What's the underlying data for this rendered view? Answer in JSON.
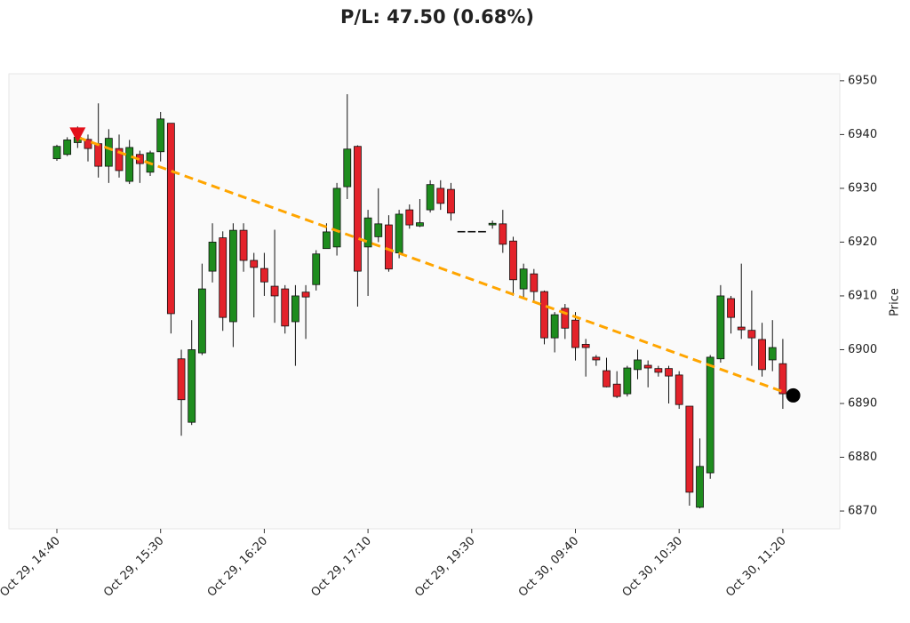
{
  "chart_data": {
    "type": "candlestick",
    "title": "P/L: 47.50 (0.68%)",
    "y_label": "Price",
    "categories": [
      "Oct 29, 14:40",
      null,
      null,
      null,
      null,
      null,
      null,
      null,
      null,
      null,
      "Oct 29, 15:30",
      null,
      null,
      null,
      null,
      null,
      null,
      null,
      null,
      null,
      "Oct 29, 16:20",
      null,
      null,
      null,
      null,
      null,
      null,
      null,
      null,
      null,
      "Oct 29, 17:10",
      null,
      null,
      null,
      null,
      null,
      null,
      null,
      null,
      null,
      "Oct 29, 19:30",
      null,
      null,
      null,
      null,
      null,
      null,
      null,
      null,
      null,
      "Oct 30, 09:40",
      null,
      null,
      null,
      null,
      null,
      null,
      null,
      null,
      null,
      "Oct 30, 10:30",
      null,
      null,
      null,
      null,
      null,
      null,
      null,
      null,
      null,
      "Oct 30, 11:20"
    ],
    "open": [
      6935.5,
      6936.3,
      6938.5,
      6939.1,
      6938.3,
      6934.1,
      6937.4,
      6931.3,
      6936.3,
      6933,
      6936.8,
      6942.1,
      6898.3,
      6886.5,
      6899.4,
      6914.6,
      6920.8,
      6905.2,
      6922.2,
      6916.6,
      6915.1,
      6911.8,
      6911.3,
      6905.2,
      6910.7,
      6912.1,
      6918.8,
      6919.1,
      6930.3,
      6937.8,
      6919.1,
      6921,
      6923.2,
      6918,
      6926,
      6923,
      6926,
      6930,
      6929.8,
      6922,
      6922,
      6922,
      6923.2,
      6923.4,
      6920.2,
      6911.3,
      6914.1,
      6910.8,
      6902.2,
      6907.7,
      6905.5,
      6901,
      6898.6,
      6896.1,
      6893.6,
      6891.8,
      6896.3,
      6897.1,
      6896.5,
      6896.5,
      6895.3,
      6889.5,
      6870.7,
      6877.1,
      6898.3,
      6909.5,
      6904.2,
      6903.6,
      6901.9,
      6898.1,
      6897.4
    ],
    "high": [
      6938.1,
      6939.5,
      6941.5,
      6940,
      6945.8,
      6941,
      6940,
      6939,
      6937,
      6937,
      6944.2,
      6942.1,
      6900,
      6905.5,
      6916,
      6923.5,
      6922,
      6923.5,
      6923.5,
      6918,
      6918,
      6922.3,
      6912,
      6912,
      6912,
      6918.5,
      6923.5,
      6931,
      6947.5,
      6938,
      6926,
      6930,
      6925,
      6926,
      6927,
      6928,
      6931.5,
      6931.5,
      6931,
      6922,
      6922,
      6922,
      6924,
      6926,
      6921,
      6916,
      6915,
      6911,
      6907,
      6908.5,
      6907,
      6902,
      6899,
      6898.5,
      6896,
      6897,
      6900,
      6898,
      6897,
      6897,
      6896,
      6889.5,
      6883.5,
      6899,
      6912,
      6910,
      6916,
      6911,
      6905,
      6905.5,
      6902
    ],
    "low": [
      6935.1,
      6936,
      6937.5,
      6935,
      6932,
      6931,
      6932,
      6930.8,
      6931,
      6932.3,
      6935,
      6903,
      6884,
      6886,
      6899,
      6912.5,
      6903.5,
      6900.5,
      6914.5,
      6906,
      6910,
      6905,
      6903,
      6897,
      6902,
      6911,
      6918.8,
      6917.5,
      6928,
      6908,
      6910,
      6920,
      6914.5,
      6917,
      6922.5,
      6922.8,
      6925.5,
      6926,
      6924,
      6922,
      6922,
      6922,
      6922.5,
      6918,
      6910,
      6909.5,
      6909,
      6901,
      6899.5,
      6902,
      6898,
      6895,
      6897,
      6893,
      6891,
      6891.3,
      6894.5,
      6893,
      6895,
      6890,
      6889,
      6871,
      6870.5,
      6876,
      6897.6,
      6903,
      6902,
      6897,
      6895,
      6896,
      6889
    ],
    "close": [
      6937.8,
      6939,
      6939.5,
      6937.4,
      6934.1,
      6939.3,
      6933.3,
      6937.6,
      6934.6,
      6936.6,
      6942.9,
      6906.7,
      6890.7,
      6900,
      6911.3,
      6920,
      6906,
      6922.2,
      6916.6,
      6915.3,
      6912.6,
      6910,
      6904.4,
      6910,
      6909.8,
      6917.8,
      6921.9,
      6930,
      6937.3,
      6914.6,
      6924.5,
      6923.4,
      6915,
      6925.2,
      6923.2,
      6923.6,
      6930.7,
      6927.2,
      6925.4,
      6922,
      6922,
      6922,
      6923.5,
      6919.6,
      6913,
      6915,
      6910.8,
      6902.2,
      6906.5,
      6904,
      6900.4,
      6900.4,
      6898.1,
      6893.1,
      6891.3,
      6896.6,
      6898.1,
      6896.6,
      6895.8,
      6895.1,
      6889.8,
      6873.5,
      6878.3,
      6898.6,
      6910,
      6906,
      6903.7,
      6902.2,
      6896.3,
      6900.4,
      6891.8
    ],
    "up_color": "#1e8c1e",
    "down_color": "#e3222a",
    "ylim": [
      6866.7,
      6951.3
    ],
    "yticks": [
      6870,
      6880,
      6890,
      6900,
      6910,
      6920,
      6930,
      6940,
      6950
    ],
    "entry": {
      "index": 2,
      "price": 6939.5,
      "color": "#e3101a"
    },
    "exit": {
      "index": 71,
      "price": 6891.5,
      "color": "#000000"
    },
    "trend_color": "#ffa500"
  }
}
